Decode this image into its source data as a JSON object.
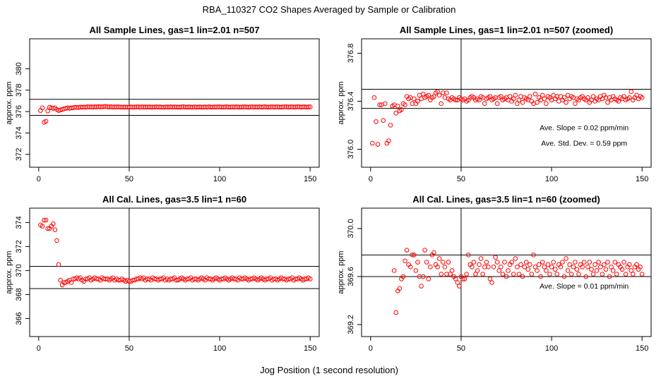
{
  "suptitle": "RBA_110327  CO2 Shapes Averaged by Sample or Calibration",
  "xlabel": "Jog Position (1 second resolution)",
  "chart_data": [
    {
      "type": "scatter",
      "title": "All Sample Lines, gas=1 lin=2.01 n=507",
      "xlabel": "",
      "ylabel": "approx. ppm",
      "xlim": [
        -5,
        155
      ],
      "ylim": [
        370.8,
        382.8
      ],
      "xticks": [
        0,
        50,
        100,
        150
      ],
      "yticks": [
        372,
        374,
        376,
        378,
        380
      ],
      "ytick_labels": [
        "372",
        "374",
        "376",
        "378",
        "380"
      ],
      "hlines": [
        377.15,
        375.65
      ],
      "vline": 50,
      "marker_color": "#ff0000",
      "annotations": [],
      "x": [
        1,
        2,
        3,
        4,
        5,
        6,
        7,
        8,
        9,
        10,
        11,
        12,
        13,
        14,
        15,
        16,
        17,
        18,
        19,
        20,
        21,
        22,
        23,
        24,
        25,
        26,
        27,
        28,
        29,
        30,
        31,
        32,
        33,
        34,
        35,
        36,
        37,
        38,
        39,
        40,
        41,
        42,
        43,
        44,
        45,
        46,
        47,
        48,
        49,
        50,
        51,
        52,
        53,
        54,
        55,
        56,
        57,
        58,
        59,
        60,
        61,
        62,
        63,
        64,
        65,
        66,
        67,
        68,
        69,
        70,
        71,
        72,
        73,
        74,
        75,
        76,
        77,
        78,
        79,
        80,
        81,
        82,
        83,
        84,
        85,
        86,
        87,
        88,
        89,
        90,
        91,
        92,
        93,
        94,
        95,
        96,
        97,
        98,
        99,
        100,
        101,
        102,
        103,
        104,
        105,
        106,
        107,
        108,
        109,
        110,
        111,
        112,
        113,
        114,
        115,
        116,
        117,
        118,
        119,
        120,
        121,
        122,
        123,
        124,
        125,
        126,
        127,
        128,
        129,
        130,
        131,
        132,
        133,
        134,
        135,
        136,
        137,
        138,
        139,
        140,
        141,
        142,
        143,
        144,
        145,
        146,
        147,
        148,
        149,
        150
      ],
      "y": [
        376.1,
        376.35,
        375.0,
        375.1,
        376.05,
        376.4,
        376.35,
        376.3,
        376.35,
        376.2,
        376.1,
        376.15,
        376.2,
        376.25,
        376.3,
        376.35,
        376.3,
        376.35,
        376.35,
        376.4,
        376.4,
        376.38,
        376.42,
        376.4,
        376.42,
        376.4,
        376.45,
        376.43,
        376.44,
        376.42,
        376.45,
        376.43,
        376.46,
        376.44,
        376.45,
        376.46,
        376.48,
        376.44,
        376.43,
        376.45,
        376.42,
        376.44,
        376.43,
        376.44,
        376.42,
        376.41,
        376.42,
        376.42,
        376.41,
        376.42,
        376.43,
        376.41,
        376.42,
        376.43,
        376.44,
        376.41,
        376.44,
        376.42,
        376.43,
        376.42,
        376.43,
        376.41,
        376.42,
        376.42,
        376.44,
        376.42,
        376.43,
        376.41,
        376.4,
        376.42,
        376.43,
        376.42,
        376.44,
        376.41,
        376.43,
        376.42,
        376.42,
        376.41,
        376.43,
        376.45,
        376.42,
        376.41,
        376.43,
        376.42,
        376.4,
        376.44,
        376.41,
        376.42,
        376.43,
        376.41,
        376.42,
        376.43,
        376.41,
        376.44,
        376.42,
        376.41,
        376.43,
        376.42,
        376.44,
        376.43,
        376.42,
        376.41,
        376.43,
        376.44,
        376.42,
        376.41,
        376.43,
        376.42,
        376.44,
        376.43,
        376.41,
        376.42,
        376.43,
        376.44,
        376.42,
        376.41,
        376.43,
        376.44,
        376.42,
        376.43,
        376.42,
        376.44,
        376.41,
        376.43,
        376.45,
        376.42,
        376.41,
        376.43,
        376.44,
        376.42,
        376.43,
        376.44,
        376.42,
        376.41,
        376.43,
        376.44,
        376.45,
        376.42,
        376.43,
        376.44,
        376.42,
        376.43,
        376.45,
        376.44,
        376.42,
        376.43,
        376.44,
        376.42,
        376.43,
        376.44
      ]
    },
    {
      "type": "scatter",
      "title": "All Sample Lines, gas=1 lin=2.01 n=507 (zoomed)",
      "xlabel": "",
      "ylabel": "approx. ppm",
      "xlim": [
        -5,
        155
      ],
      "ylim": [
        375.85,
        376.92
      ],
      "xticks": [
        0,
        50,
        100,
        150
      ],
      "yticks": [
        376.0,
        376.4,
        376.8
      ],
      "ytick_labels": [
        "376.0",
        "376.4",
        "376.8"
      ],
      "hlines": [
        376.5,
        376.34
      ],
      "vline": 50,
      "marker_color": "#ff0000",
      "annotations": [
        {
          "text": "Ave. Slope =  0.02  ppm/min",
          "x": 118,
          "y": 376.16
        },
        {
          "text": "Ave. Std. Dev. =  0.59  ppm",
          "x": 118,
          "y": 376.03
        }
      ],
      "x": [
        1,
        2,
        3,
        4,
        5,
        6,
        7,
        8,
        9,
        10,
        11,
        12,
        13,
        14,
        15,
        16,
        17,
        18,
        19,
        20,
        21,
        22,
        23,
        24,
        25,
        26,
        27,
        28,
        29,
        30,
        31,
        32,
        33,
        34,
        35,
        36,
        37,
        38,
        39,
        40,
        41,
        42,
        43,
        44,
        45,
        46,
        47,
        48,
        49,
        50,
        51,
        52,
        53,
        54,
        55,
        56,
        57,
        58,
        59,
        60,
        61,
        62,
        63,
        64,
        65,
        66,
        67,
        68,
        69,
        70,
        71,
        72,
        73,
        74,
        75,
        76,
        77,
        78,
        79,
        80,
        81,
        82,
        83,
        84,
        85,
        86,
        87,
        88,
        89,
        90,
        91,
        92,
        93,
        94,
        95,
        96,
        97,
        98,
        99,
        100,
        101,
        102,
        103,
        104,
        105,
        106,
        107,
        108,
        109,
        110,
        111,
        112,
        113,
        114,
        115,
        116,
        117,
        118,
        119,
        120,
        121,
        122,
        123,
        124,
        125,
        126,
        127,
        128,
        129,
        130,
        131,
        132,
        133,
        134,
        135,
        136,
        137,
        138,
        139,
        140,
        141,
        142,
        143,
        144,
        145,
        146,
        147,
        148,
        149,
        150
      ],
      "y": [
        376.05,
        376.43,
        376.23,
        376.04,
        376.37,
        376.37,
        376.24,
        376.38,
        376.05,
        376.07,
        376.2,
        376.36,
        376.37,
        376.3,
        376.36,
        376.32,
        376.33,
        376.38,
        376.37,
        376.44,
        376.42,
        376.43,
        376.38,
        376.42,
        376.38,
        376.4,
        376.45,
        376.42,
        376.46,
        376.43,
        376.44,
        376.45,
        376.41,
        376.43,
        376.44,
        376.47,
        376.48,
        376.45,
        376.38,
        376.47,
        376.43,
        376.47,
        376.42,
        376.41,
        376.43,
        376.42,
        376.41,
        376.41,
        376.43,
        376.42,
        376.41,
        376.42,
        376.4,
        376.41,
        376.43,
        376.44,
        376.43,
        376.41,
        376.42,
        376.41,
        376.44,
        376.43,
        376.38,
        376.42,
        376.43,
        376.44,
        376.41,
        376.42,
        376.43,
        376.38,
        376.43,
        376.44,
        376.41,
        376.42,
        376.43,
        376.41,
        376.44,
        376.4,
        376.42,
        376.45,
        376.38,
        376.41,
        376.44,
        376.39,
        376.43,
        376.42,
        376.41,
        376.44,
        376.4,
        376.38,
        376.46,
        376.39,
        376.43,
        376.41,
        376.45,
        376.42,
        376.38,
        376.44,
        376.43,
        376.41,
        376.45,
        376.42,
        376.44,
        376.4,
        376.44,
        376.41,
        376.43,
        376.39,
        376.45,
        376.42,
        376.44,
        376.43,
        376.38,
        376.42,
        376.41,
        376.43,
        376.44,
        376.42,
        376.41,
        376.43,
        376.39,
        376.41,
        376.44,
        376.4,
        376.42,
        376.41,
        376.44,
        376.42,
        376.45,
        376.43,
        376.39,
        376.43,
        376.41,
        376.44,
        376.42,
        376.41,
        376.4,
        376.43,
        376.42,
        376.44,
        376.41,
        376.42,
        376.43,
        376.48,
        376.41,
        376.43,
        376.45,
        376.42,
        376.44,
        376.43
      ]
    },
    {
      "type": "scatter",
      "title": "All Cal. Lines, gas=3.5 lin=1 n=60",
      "xlabel": "",
      "ylabel": "approx. ppm",
      "xlim": [
        -5,
        155
      ],
      "ylim": [
        364.5,
        375.2
      ],
      "xticks": [
        0,
        50,
        100,
        150
      ],
      "yticks": [
        366,
        368,
        370,
        372,
        374
      ],
      "ytick_labels": [
        "366",
        "368",
        "370",
        "372",
        "374"
      ],
      "hlines": [
        370.35,
        368.5
      ],
      "vline": 50,
      "marker_color": "#ff0000",
      "annotations": [],
      "x": [
        1,
        2,
        3,
        4,
        5,
        6,
        7,
        8,
        9,
        10,
        11,
        12,
        13,
        14,
        15,
        16,
        17,
        18,
        19,
        20,
        21,
        22,
        23,
        24,
        25,
        26,
        27,
        28,
        29,
        30,
        31,
        32,
        33,
        34,
        35,
        36,
        37,
        38,
        39,
        40,
        41,
        42,
        43,
        44,
        45,
        46,
        47,
        48,
        49,
        50,
        51,
        52,
        53,
        54,
        55,
        56,
        57,
        58,
        59,
        60,
        61,
        62,
        63,
        64,
        65,
        66,
        67,
        68,
        69,
        70,
        71,
        72,
        73,
        74,
        75,
        76,
        77,
        78,
        79,
        80,
        81,
        82,
        83,
        84,
        85,
        86,
        87,
        88,
        89,
        90,
        91,
        92,
        93,
        94,
        95,
        96,
        97,
        98,
        99,
        100,
        101,
        102,
        103,
        104,
        105,
        106,
        107,
        108,
        109,
        110,
        111,
        112,
        113,
        114,
        115,
        116,
        117,
        118,
        119,
        120,
        121,
        122,
        123,
        124,
        125,
        126,
        127,
        128,
        129,
        130,
        131,
        132,
        133,
        134,
        135,
        136,
        137,
        138,
        139,
        140,
        141,
        142,
        143,
        144,
        145,
        146,
        147,
        148,
        149,
        150
      ],
      "y": [
        373.8,
        373.7,
        374.2,
        374.2,
        373.5,
        373.5,
        373.7,
        373.9,
        373.4,
        372.5,
        370.5,
        369.2,
        368.8,
        369.0,
        369.0,
        369.1,
        369.2,
        369.0,
        369.3,
        369.3,
        369.4,
        369.3,
        369.4,
        369.2,
        369.1,
        369.3,
        369.3,
        369.4,
        369.2,
        369.3,
        369.4,
        369.3,
        369.3,
        369.2,
        369.4,
        369.3,
        369.3,
        369.3,
        369.2,
        369.3,
        369.4,
        369.2,
        369.3,
        369.2,
        369.2,
        369.3,
        369.2,
        369.1,
        369.2,
        369.1,
        369.1,
        369.2,
        369.2,
        369.3,
        369.3,
        369.4,
        369.3,
        369.4,
        369.2,
        369.3,
        369.3,
        369.2,
        369.4,
        369.3,
        369.3,
        369.2,
        369.3,
        369.3,
        369.4,
        369.2,
        369.3,
        369.2,
        369.3,
        369.3,
        369.4,
        369.2,
        369.2,
        369.3,
        369.4,
        369.3,
        369.2,
        369.3,
        369.3,
        369.4,
        369.2,
        369.3,
        369.3,
        369.2,
        369.3,
        369.4,
        369.3,
        369.2,
        369.4,
        369.3,
        369.3,
        369.2,
        369.3,
        369.4,
        369.3,
        369.2,
        369.3,
        369.3,
        369.4,
        369.3,
        369.2,
        369.3,
        369.4,
        369.3,
        369.3,
        369.2,
        369.4,
        369.3,
        369.3,
        369.4,
        369.3,
        369.2,
        369.3,
        369.3,
        369.4,
        369.3,
        369.2,
        369.3,
        369.4,
        369.3,
        369.2,
        369.3,
        369.3,
        369.4,
        369.2,
        369.3,
        369.3,
        369.2,
        369.3,
        369.4,
        369.3,
        369.3,
        369.2,
        369.3,
        369.3,
        369.4,
        369.2,
        369.3,
        369.3,
        369.4,
        369.3,
        369.2,
        369.3,
        369.3,
        369.4,
        369.3
      ]
    },
    {
      "type": "scatter",
      "title": "All Cal. Lines, gas=3.5 lin=1 n=60 (zoomed)",
      "xlabel": "",
      "ylabel": "approx. ppm",
      "xlim": [
        -5,
        155
      ],
      "ylim": [
        369.1,
        370.17
      ],
      "xticks": [
        0,
        50,
        100,
        150
      ],
      "yticks": [
        369.2,
        369.6,
        370.0
      ],
      "ytick_labels": [
        "369.2",
        "369.6",
        "370.0"
      ],
      "hlines": [
        369.78,
        369.6
      ],
      "vline": 50,
      "marker_color": "#ff0000",
      "annotations": [
        {
          "text": "Ave. Slope =  0.01  ppm/min",
          "x": 118,
          "y": 369.5
        }
      ],
      "x": [
        13,
        14,
        15,
        16,
        17,
        18,
        19,
        20,
        21,
        22,
        23,
        24,
        25,
        26,
        27,
        28,
        29,
        30,
        31,
        32,
        33,
        34,
        35,
        36,
        37,
        38,
        39,
        40,
        41,
        42,
        43,
        44,
        45,
        46,
        47,
        48,
        49,
        50,
        51,
        52,
        53,
        54,
        55,
        56,
        57,
        58,
        59,
        60,
        61,
        62,
        63,
        64,
        65,
        66,
        67,
        68,
        69,
        70,
        71,
        72,
        73,
        74,
        75,
        76,
        77,
        78,
        79,
        80,
        81,
        82,
        83,
        84,
        85,
        86,
        87,
        88,
        89,
        90,
        91,
        92,
        93,
        94,
        95,
        96,
        97,
        98,
        99,
        100,
        101,
        102,
        103,
        104,
        105,
        106,
        107,
        108,
        109,
        110,
        111,
        112,
        113,
        114,
        115,
        116,
        117,
        118,
        119,
        120,
        121,
        122,
        123,
        124,
        125,
        126,
        127,
        128,
        129,
        130,
        131,
        132,
        133,
        134,
        135,
        136,
        137,
        138,
        139,
        140,
        141,
        142,
        143,
        144,
        145,
        146,
        147,
        148,
        149,
        150
      ],
      "y": [
        369.65,
        369.3,
        369.48,
        369.5,
        369.58,
        369.6,
        369.73,
        369.82,
        369.7,
        369.68,
        369.78,
        369.78,
        369.65,
        369.72,
        369.6,
        369.52,
        369.6,
        369.82,
        369.72,
        369.58,
        369.68,
        369.78,
        369.8,
        369.7,
        369.68,
        369.75,
        369.62,
        369.72,
        369.68,
        369.62,
        369.72,
        369.62,
        369.65,
        369.6,
        369.58,
        369.55,
        369.52,
        369.6,
        369.58,
        369.58,
        369.62,
        369.78,
        369.7,
        369.68,
        369.72,
        369.62,
        369.65,
        369.7,
        369.75,
        369.62,
        369.68,
        369.72,
        369.68,
        369.58,
        369.55,
        369.68,
        369.76,
        369.72,
        369.65,
        369.68,
        369.62,
        369.72,
        369.6,
        369.65,
        369.7,
        369.72,
        369.62,
        369.75,
        369.68,
        369.62,
        369.7,
        369.6,
        369.68,
        369.72,
        369.66,
        369.7,
        369.62,
        369.78,
        369.68,
        369.65,
        369.7,
        369.6,
        369.72,
        369.68,
        369.65,
        369.7,
        369.62,
        369.68,
        369.72,
        369.66,
        369.62,
        369.7,
        369.68,
        369.72,
        369.6,
        369.75,
        369.65,
        369.7,
        369.62,
        369.68,
        369.72,
        369.66,
        369.62,
        369.7,
        369.68,
        369.72,
        369.6,
        369.68,
        369.72,
        369.66,
        369.62,
        369.7,
        369.65,
        369.72,
        369.68,
        369.62,
        369.7,
        369.66,
        369.72,
        369.6,
        369.68,
        369.65,
        369.72,
        369.62,
        369.7,
        369.68,
        369.66,
        369.72,
        369.62,
        369.68,
        369.7,
        369.65,
        369.62,
        369.68,
        369.7,
        369.66,
        369.68,
        369.62
      ]
    }
  ]
}
